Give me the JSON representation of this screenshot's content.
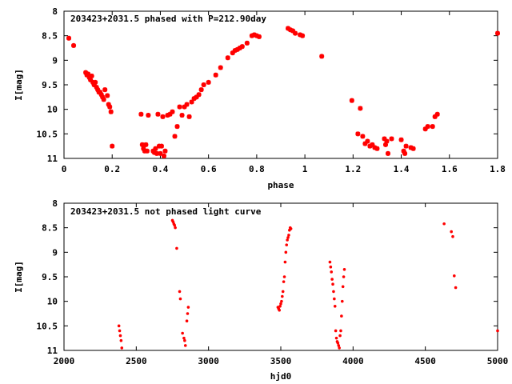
{
  "chart_data": [
    {
      "type": "scatter",
      "title": "203423+2031.5 phased with P=212.90day",
      "xlabel": "phase",
      "ylabel": "I[mag]",
      "xlim": [
        0,
        1.8
      ],
      "ylim": [
        11,
        8
      ],
      "y_inverted": true,
      "xticks": [
        "0",
        "0.2",
        "0.4",
        "0.6",
        "0.8",
        "1",
        "1.2",
        "1.4",
        "1.6",
        "1.8"
      ],
      "xtick_values": [
        0,
        0.2,
        0.4,
        0.6,
        0.8,
        1.0,
        1.2,
        1.4,
        1.6,
        1.8
      ],
      "yticks": [
        "8",
        "8.5",
        "9",
        "9.5",
        "10",
        "10.5",
        "11"
      ],
      "ytick_values": [
        8,
        8.5,
        9,
        9.5,
        10,
        10.5,
        11
      ],
      "marker": "star",
      "marker_color": "#ff0000",
      "grid": false,
      "x": [
        0.02,
        0.04,
        0.09,
        0.095,
        0.1,
        0.105,
        0.11,
        0.115,
        0.12,
        0.125,
        0.13,
        0.135,
        0.14,
        0.145,
        0.15,
        0.155,
        0.16,
        0.165,
        0.17,
        0.18,
        0.185,
        0.19,
        0.195,
        0.2,
        0.32,
        0.325,
        0.33,
        0.335,
        0.34,
        0.345,
        0.35,
        0.37,
        0.375,
        0.38,
        0.385,
        0.39,
        0.395,
        0.4,
        0.405,
        0.41,
        0.415,
        0.42,
        0.43,
        0.44,
        0.45,
        0.46,
        0.47,
        0.48,
        0.49,
        0.5,
        0.51,
        0.52,
        0.53,
        0.54,
        0.55,
        0.56,
        0.57,
        0.58,
        0.6,
        0.63,
        0.65,
        0.68,
        0.7,
        0.71,
        0.72,
        0.73,
        0.74,
        0.76,
        0.78,
        0.79,
        0.8,
        0.81,
        0.93,
        0.94,
        0.95,
        0.96,
        0.98,
        0.99,
        1.07,
        1.195,
        1.22,
        1.23,
        1.24,
        1.25,
        1.26,
        1.27,
        1.28,
        1.29,
        1.3,
        1.33,
        1.335,
        1.34,
        1.345,
        1.36,
        1.4,
        1.41,
        1.415,
        1.42,
        1.44,
        1.45,
        1.5,
        1.51,
        1.53,
        1.54,
        1.55,
        1.8
      ],
      "y": [
        8.55,
        8.7,
        9.25,
        9.3,
        9.28,
        9.35,
        9.4,
        9.32,
        9.45,
        9.5,
        9.45,
        9.55,
        9.6,
        9.65,
        9.65,
        9.7,
        9.75,
        9.8,
        9.6,
        9.72,
        9.9,
        9.95,
        10.05,
        10.75,
        10.1,
        10.72,
        10.8,
        10.85,
        10.72,
        10.85,
        10.12,
        10.85,
        10.88,
        10.8,
        10.9,
        10.1,
        10.75,
        10.9,
        10.75,
        10.15,
        10.95,
        10.85,
        10.12,
        10.1,
        10.05,
        10.55,
        10.35,
        9.95,
        10.12,
        9.95,
        9.9,
        10.15,
        9.85,
        9.78,
        9.75,
        9.7,
        9.6,
        9.5,
        9.45,
        9.3,
        9.15,
        8.95,
        8.85,
        8.8,
        8.78,
        8.75,
        8.72,
        8.65,
        8.5,
        8.48,
        8.5,
        8.52,
        8.35,
        8.38,
        8.4,
        8.45,
        8.48,
        8.5,
        8.92,
        9.82,
        10.5,
        9.98,
        10.55,
        10.7,
        10.65,
        10.75,
        10.72,
        10.78,
        10.8,
        10.6,
        10.72,
        10.65,
        10.9,
        10.6,
        10.62,
        10.85,
        10.9,
        10.75,
        10.78,
        10.8,
        10.4,
        10.35,
        10.35,
        10.15,
        10.1,
        8.45
      ]
    },
    {
      "type": "scatter",
      "title": "203423+2031.5 not phased light curve",
      "xlabel": "hjd0",
      "ylabel": "I[mag]",
      "xlim": [
        2000,
        5000
      ],
      "ylim": [
        11,
        8
      ],
      "y_inverted": true,
      "xticks": [
        "2000",
        "2500",
        "3000",
        "3500",
        "4000",
        "4500",
        "5000"
      ],
      "xtick_values": [
        2000,
        2500,
        3000,
        3500,
        4000,
        4500,
        5000
      ],
      "yticks": [
        "8",
        "8.5",
        "9",
        "9.5",
        "10",
        "10.5",
        "11"
      ],
      "ytick_values": [
        8,
        8.5,
        9,
        9.5,
        10,
        10.5,
        11
      ],
      "marker": "dot",
      "marker_color": "#ff0000",
      "grid": false,
      "x": [
        2380,
        2385,
        2390,
        2395,
        2400,
        2750,
        2755,
        2760,
        2765,
        2770,
        2780,
        2800,
        2805,
        2820,
        2830,
        2835,
        2840,
        2850,
        2855,
        2860,
        3480,
        3485,
        3490,
        3495,
        3500,
        3505,
        3510,
        3515,
        3520,
        3525,
        3530,
        3535,
        3540,
        3545,
        3550,
        3555,
        3560,
        3565,
        3570,
        3840,
        3845,
        3850,
        3855,
        3860,
        3865,
        3870,
        3875,
        3880,
        3885,
        3890,
        3895,
        3900,
        3905,
        3910,
        3915,
        3920,
        3925,
        3930,
        3935,
        3940,
        4630,
        4680,
        4690,
        4700,
        4710,
        5000
      ],
      "y": [
        10.5,
        10.6,
        10.7,
        10.8,
        10.95,
        8.35,
        8.38,
        8.42,
        8.45,
        8.5,
        8.92,
        9.8,
        9.95,
        10.65,
        10.75,
        10.8,
        10.9,
        10.4,
        10.25,
        10.12,
        10.12,
        10.15,
        10.18,
        10.1,
        10.05,
        10.0,
        9.9,
        9.8,
        9.6,
        9.5,
        9.2,
        9.0,
        8.85,
        8.75,
        8.7,
        8.65,
        8.55,
        8.5,
        8.52,
        9.2,
        9.3,
        9.4,
        9.55,
        9.65,
        9.8,
        9.95,
        10.1,
        10.6,
        10.75,
        10.82,
        10.85,
        10.9,
        10.95,
        10.7,
        10.6,
        10.3,
        10.0,
        9.7,
        9.5,
        9.35,
        8.42,
        8.58,
        8.68,
        9.48,
        9.72,
        10.6
      ]
    }
  ]
}
